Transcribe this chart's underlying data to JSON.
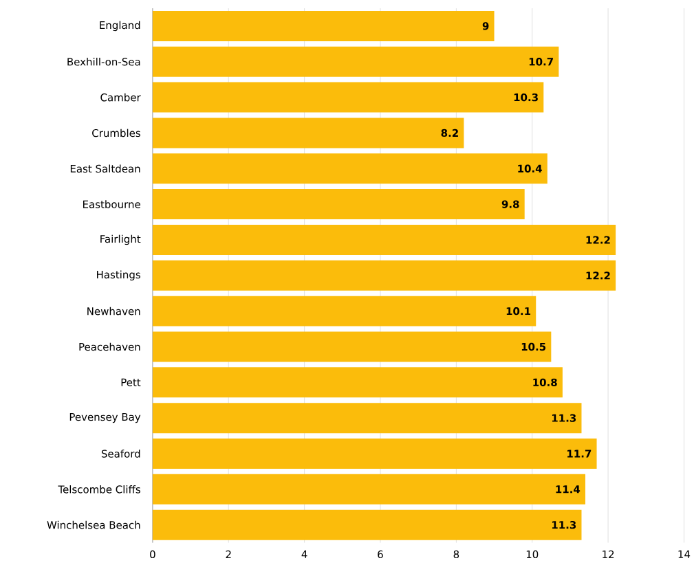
{
  "chart_data": {
    "type": "bar",
    "orientation": "horizontal",
    "categories": [
      "England",
      "Bexhill-on-Sea",
      "Camber",
      "Crumbles",
      "East Saltdean",
      "Eastbourne",
      "Fairlight",
      "Hastings",
      "Newhaven",
      "Peacehaven",
      "Pett",
      "Pevensey Bay",
      "Seaford",
      "Telscombe Cliffs",
      "Winchelsea Beach"
    ],
    "values": [
      9,
      10.7,
      10.3,
      8.2,
      10.4,
      9.8,
      12.2,
      12.2,
      10.1,
      10.5,
      10.8,
      11.3,
      11.7,
      11.4,
      11.3
    ],
    "color": "#fbbc0b",
    "xlim": [
      0,
      14
    ],
    "xticks": [
      0,
      2,
      4,
      6,
      8,
      10,
      12,
      14
    ],
    "grid": "x",
    "data_labels": true
  }
}
